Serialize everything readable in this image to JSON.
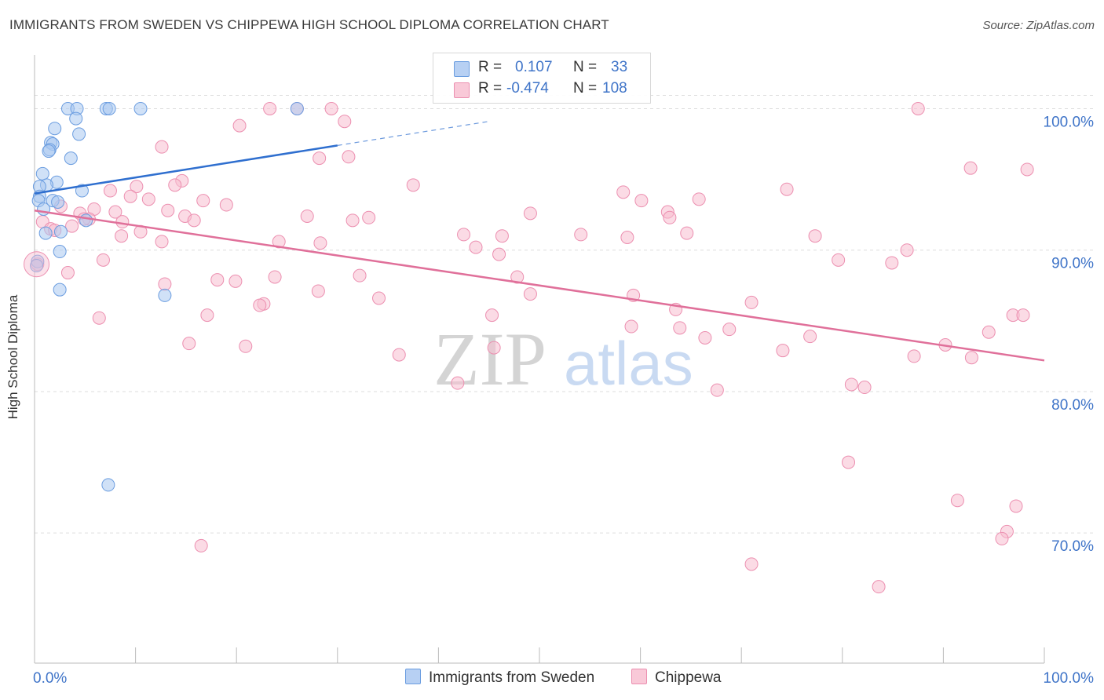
{
  "title": "IMMIGRANTS FROM SWEDEN VS CHIPPEWA HIGH SCHOOL DIPLOMA CORRELATION CHART",
  "source": "Source: ZipAtlas.com",
  "watermark": {
    "zip": "ZIP",
    "atlas": "atlas"
  },
  "legend": {
    "rows": [
      {
        "r_label": "R =",
        "r_value": "0.107",
        "n_label": "N =",
        "n_value": "33"
      },
      {
        "r_label": "R =",
        "r_value": "-0.474",
        "n_label": "N =",
        "n_value": "108"
      }
    ]
  },
  "bottom_legend": {
    "series_a": "Immigrants from Sweden",
    "series_b": "Chippewa"
  },
  "colors": {
    "blue_fill": "#aac8f0",
    "blue_stroke": "#6b9de0",
    "blue_line": "#2f6fcf",
    "pink_fill": "#f7bdd0",
    "pink_stroke": "#ec8fb0",
    "pink_line": "#e0709a",
    "value_text": "#3f74c8",
    "grid": "#dddddd"
  },
  "chart_data": {
    "type": "scatter",
    "title": "IMMIGRANTS FROM SWEDEN VS CHIPPEWA HIGH SCHOOL DIPLOMA CORRELATION CHART",
    "xlabel": "",
    "ylabel": "High School Diploma",
    "xlim": [
      0,
      100
    ],
    "ylim": [
      60.8,
      103.8
    ],
    "x_tick_labels": [
      "0.0%",
      "100.0%"
    ],
    "y_ticks": [
      70,
      80,
      90,
      100
    ],
    "y_tick_labels": [
      "70.0%",
      "80.0%",
      "90.0%",
      "100.0%"
    ],
    "grid": true,
    "legend_position": "top-center",
    "series": [
      {
        "name": "Immigrants from Sweden",
        "r": 0.107,
        "n": 33,
        "trend": {
          "x": [
            0,
            30
          ],
          "y": [
            94.0,
            97.4
          ],
          "dashed_to": [
            45,
            99.1
          ]
        },
        "points": [
          {
            "x": 3.3,
            "y": 100.0
          },
          {
            "x": 4.2,
            "y": 100.0
          },
          {
            "x": 7.1,
            "y": 100.0
          },
          {
            "x": 7.4,
            "y": 100.0
          },
          {
            "x": 10.5,
            "y": 100.0
          },
          {
            "x": 26.0,
            "y": 100.0
          },
          {
            "x": 4.1,
            "y": 99.3
          },
          {
            "x": 2.0,
            "y": 98.6
          },
          {
            "x": 4.4,
            "y": 98.2
          },
          {
            "x": 1.6,
            "y": 97.6
          },
          {
            "x": 1.8,
            "y": 97.5
          },
          {
            "x": 1.5,
            "y": 97.1
          },
          {
            "x": 1.4,
            "y": 97.0
          },
          {
            "x": 3.6,
            "y": 96.5
          },
          {
            "x": 0.8,
            "y": 95.4
          },
          {
            "x": 2.2,
            "y": 94.8
          },
          {
            "x": 1.2,
            "y": 94.6
          },
          {
            "x": 0.5,
            "y": 94.5
          },
          {
            "x": 4.7,
            "y": 94.2
          },
          {
            "x": 0.5,
            "y": 93.8
          },
          {
            "x": 0.4,
            "y": 93.5
          },
          {
            "x": 1.8,
            "y": 93.5
          },
          {
            "x": 2.3,
            "y": 93.4
          },
          {
            "x": 0.9,
            "y": 92.9
          },
          {
            "x": 5.1,
            "y": 92.1
          },
          {
            "x": 2.6,
            "y": 91.3
          },
          {
            "x": 1.1,
            "y": 91.2
          },
          {
            "x": 2.5,
            "y": 89.9
          },
          {
            "x": 0.3,
            "y": 89.2
          },
          {
            "x": 0.2,
            "y": 88.9
          },
          {
            "x": 2.5,
            "y": 87.2
          },
          {
            "x": 12.9,
            "y": 86.8
          },
          {
            "x": 7.3,
            "y": 73.4
          }
        ]
      },
      {
        "name": "Chippewa",
        "r": -0.474,
        "n": 108,
        "trend": {
          "x": [
            0,
            100
          ],
          "y": [
            92.8,
            82.2
          ]
        },
        "points": [
          {
            "x": 23.3,
            "y": 100.0
          },
          {
            "x": 26.0,
            "y": 100.0
          },
          {
            "x": 29.4,
            "y": 100.0
          },
          {
            "x": 87.5,
            "y": 100.0
          },
          {
            "x": 30.7,
            "y": 99.1
          },
          {
            "x": 20.3,
            "y": 98.8
          },
          {
            "x": 12.6,
            "y": 97.3
          },
          {
            "x": 31.1,
            "y": 96.6
          },
          {
            "x": 28.2,
            "y": 96.5
          },
          {
            "x": 92.7,
            "y": 95.8
          },
          {
            "x": 98.3,
            "y": 95.7
          },
          {
            "x": 14.6,
            "y": 94.9
          },
          {
            "x": 13.9,
            "y": 94.6
          },
          {
            "x": 37.5,
            "y": 94.6
          },
          {
            "x": 10.1,
            "y": 94.5
          },
          {
            "x": 74.5,
            "y": 94.3
          },
          {
            "x": 7.5,
            "y": 94.2
          },
          {
            "x": 9.5,
            "y": 93.8
          },
          {
            "x": 11.3,
            "y": 93.6
          },
          {
            "x": 16.7,
            "y": 93.5
          },
          {
            "x": 60.1,
            "y": 93.5
          },
          {
            "x": 65.8,
            "y": 93.6
          },
          {
            "x": 19.0,
            "y": 93.2
          },
          {
            "x": 2.6,
            "y": 93.1
          },
          {
            "x": 5.9,
            "y": 92.9
          },
          {
            "x": 13.2,
            "y": 92.8
          },
          {
            "x": 8.0,
            "y": 92.7
          },
          {
            "x": 4.5,
            "y": 92.6
          },
          {
            "x": 62.7,
            "y": 92.7
          },
          {
            "x": 49.1,
            "y": 92.6
          },
          {
            "x": 14.9,
            "y": 92.4
          },
          {
            "x": 27.0,
            "y": 92.4
          },
          {
            "x": 33.1,
            "y": 92.3
          },
          {
            "x": 62.9,
            "y": 92.3
          },
          {
            "x": 5.4,
            "y": 92.2
          },
          {
            "x": 4.9,
            "y": 92.2
          },
          {
            "x": 15.8,
            "y": 92.1
          },
          {
            "x": 31.5,
            "y": 92.1
          },
          {
            "x": 8.7,
            "y": 92.0
          },
          {
            "x": 0.8,
            "y": 92.0
          },
          {
            "x": 1.6,
            "y": 91.5
          },
          {
            "x": 2.0,
            "y": 91.4
          },
          {
            "x": 10.5,
            "y": 91.3
          },
          {
            "x": 42.5,
            "y": 91.1
          },
          {
            "x": 54.1,
            "y": 91.1
          },
          {
            "x": 64.6,
            "y": 91.2
          },
          {
            "x": 46.3,
            "y": 91.0
          },
          {
            "x": 77.3,
            "y": 91.0
          },
          {
            "x": 8.6,
            "y": 91.0
          },
          {
            "x": 58.7,
            "y": 90.9
          },
          {
            "x": 12.6,
            "y": 90.6
          },
          {
            "x": 24.2,
            "y": 90.6
          },
          {
            "x": 28.3,
            "y": 90.5
          },
          {
            "x": 43.7,
            "y": 90.2
          },
          {
            "x": 86.4,
            "y": 90.0
          },
          {
            "x": 46.0,
            "y": 89.7
          },
          {
            "x": 0.3,
            "y": 89.0
          },
          {
            "x": 6.8,
            "y": 89.3
          },
          {
            "x": 79.6,
            "y": 89.3
          },
          {
            "x": 84.9,
            "y": 89.1
          },
          {
            "x": 3.3,
            "y": 88.4
          },
          {
            "x": 23.8,
            "y": 88.1
          },
          {
            "x": 32.2,
            "y": 88.2
          },
          {
            "x": 47.8,
            "y": 88.1
          },
          {
            "x": 18.1,
            "y": 87.9
          },
          {
            "x": 19.9,
            "y": 87.8
          },
          {
            "x": 12.9,
            "y": 87.6
          },
          {
            "x": 28.1,
            "y": 87.1
          },
          {
            "x": 49.1,
            "y": 86.9
          },
          {
            "x": 59.3,
            "y": 86.8
          },
          {
            "x": 34.1,
            "y": 86.6
          },
          {
            "x": 22.7,
            "y": 86.2
          },
          {
            "x": 22.3,
            "y": 86.1
          },
          {
            "x": 71.0,
            "y": 86.3
          },
          {
            "x": 63.5,
            "y": 85.8
          },
          {
            "x": 17.1,
            "y": 85.4
          },
          {
            "x": 45.3,
            "y": 85.4
          },
          {
            "x": 96.9,
            "y": 85.4
          },
          {
            "x": 97.9,
            "y": 85.4
          },
          {
            "x": 6.4,
            "y": 85.2
          },
          {
            "x": 63.9,
            "y": 84.5
          },
          {
            "x": 68.8,
            "y": 84.4
          },
          {
            "x": 94.5,
            "y": 84.2
          },
          {
            "x": 59.1,
            "y": 84.6
          },
          {
            "x": 66.4,
            "y": 83.8
          },
          {
            "x": 76.8,
            "y": 83.9
          },
          {
            "x": 15.3,
            "y": 83.4
          },
          {
            "x": 20.9,
            "y": 83.2
          },
          {
            "x": 45.5,
            "y": 83.1
          },
          {
            "x": 90.2,
            "y": 83.3
          },
          {
            "x": 74.1,
            "y": 82.9
          },
          {
            "x": 36.1,
            "y": 82.6
          },
          {
            "x": 87.1,
            "y": 82.5
          },
          {
            "x": 92.8,
            "y": 82.4
          },
          {
            "x": 41.9,
            "y": 80.6
          },
          {
            "x": 80.9,
            "y": 80.5
          },
          {
            "x": 82.2,
            "y": 80.3
          },
          {
            "x": 67.6,
            "y": 80.1
          },
          {
            "x": 80.6,
            "y": 75.0
          },
          {
            "x": 91.4,
            "y": 72.3
          },
          {
            "x": 97.2,
            "y": 71.9
          },
          {
            "x": 96.3,
            "y": 70.1
          },
          {
            "x": 95.8,
            "y": 69.6
          },
          {
            "x": 16.5,
            "y": 69.1
          },
          {
            "x": 71.0,
            "y": 67.8
          },
          {
            "x": 83.6,
            "y": 66.2
          },
          {
            "x": 3.7,
            "y": 91.7
          },
          {
            "x": 58.3,
            "y": 94.1
          }
        ]
      }
    ]
  }
}
